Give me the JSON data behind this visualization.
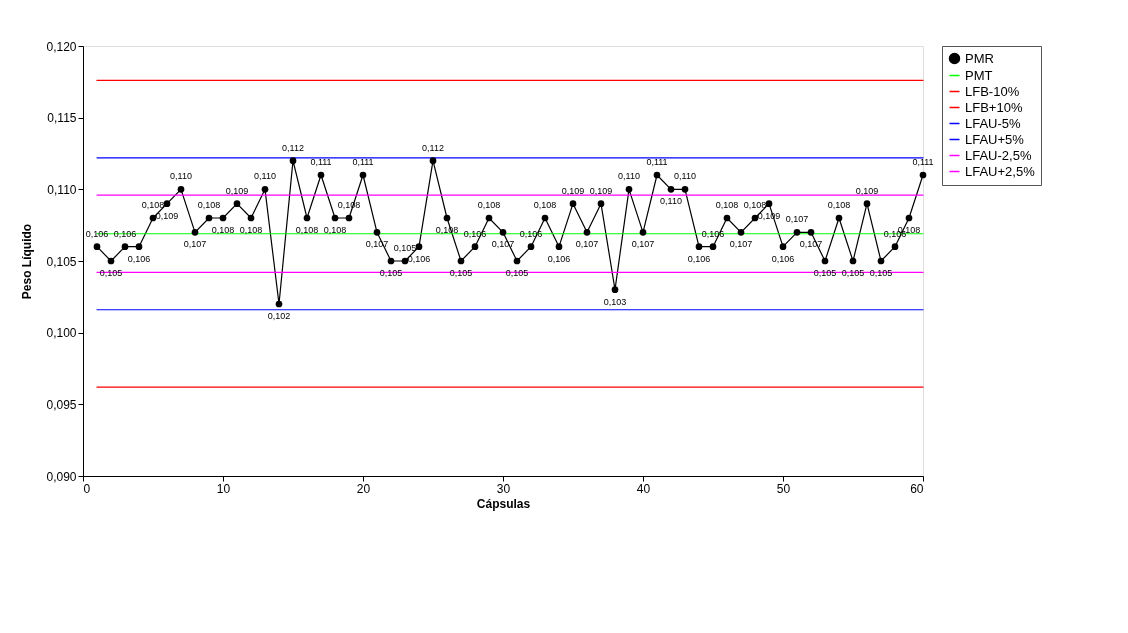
{
  "chart_data": {
    "type": "line",
    "xlabel": "Cápsulas",
    "ylabel": "Peso Líquido",
    "x": [
      1,
      2,
      3,
      4,
      5,
      6,
      7,
      8,
      9,
      10,
      11,
      12,
      13,
      14,
      15,
      16,
      17,
      18,
      19,
      20,
      21,
      22,
      23,
      24,
      25,
      26,
      27,
      28,
      29,
      30,
      31,
      32,
      33,
      34,
      35,
      36,
      37,
      38,
      39,
      40,
      41,
      42,
      43,
      44,
      45,
      46,
      47,
      48,
      49,
      50,
      51,
      52,
      53,
      54,
      55,
      56,
      57,
      58,
      59,
      60
    ],
    "series": [
      {
        "name": "PMR",
        "color": "#000000",
        "marker": "circle",
        "values": [
          0.106,
          0.105,
          0.106,
          0.106,
          0.108,
          0.109,
          0.11,
          0.107,
          0.108,
          0.108,
          0.109,
          0.108,
          0.11,
          0.102,
          0.112,
          0.108,
          0.111,
          0.108,
          0.108,
          0.111,
          0.107,
          0.105,
          0.105,
          0.106,
          0.112,
          0.108,
          0.105,
          0.106,
          0.108,
          0.107,
          0.105,
          0.106,
          0.108,
          0.106,
          0.109,
          0.107,
          0.109,
          0.103,
          0.11,
          0.107,
          0.111,
          0.11,
          0.11,
          0.106,
          0.106,
          0.108,
          0.107,
          0.108,
          0.109,
          0.106,
          0.107,
          0.107,
          0.105,
          0.108,
          0.105,
          0.109,
          0.105,
          0.106,
          0.108,
          0.111
        ],
        "value_labels": [
          "0,106",
          "0,105",
          "0,106",
          "0,106",
          "0,108",
          "0,109",
          "0,110",
          "0,107",
          "0,108",
          "0,108",
          "0,109",
          "0,108",
          "0,110",
          "0,102",
          "0,112",
          "0,108",
          "0,111",
          "0,108",
          "0,108",
          "0,111",
          "0,107",
          "0,105",
          "0,105",
          "0,106",
          "0,112",
          "0,108",
          "0,105",
          "0,106",
          "0,108",
          "0,107",
          "0,105",
          "0,106",
          "0,108",
          "0,106",
          "0,109",
          "0,107",
          "0,109",
          "0,103",
          "0,110",
          "0,107",
          "0,111",
          "0,110",
          "0,110",
          "0,106",
          "0,106",
          "0,108",
          "0,107",
          "0,108",
          "0,109",
          "0,106",
          "0,107",
          "0,107",
          "0,105",
          "0,108",
          "0,105",
          "0,109",
          "0,105",
          "0,106",
          "0,108",
          "0,111"
        ]
      },
      {
        "name": "PMT",
        "color": "#00ff00",
        "values": [
          0.1069,
          0.1069,
          0.1069,
          0.1069,
          0.1069,
          0.1069,
          0.1069,
          0.1069,
          0.1069,
          0.1069,
          0.1069,
          0.1069,
          0.1069,
          0.1069,
          0.1069,
          0.1069,
          0.1069,
          0.1069,
          0.1069,
          0.1069,
          0.1069,
          0.1069,
          0.1069,
          0.1069,
          0.1069,
          0.1069,
          0.1069,
          0.1069,
          0.1069,
          0.1069,
          0.1069,
          0.1069,
          0.1069,
          0.1069,
          0.1069,
          0.1069,
          0.1069,
          0.1069,
          0.1069,
          0.1069,
          0.1069,
          0.1069,
          0.1069,
          0.1069,
          0.1069,
          0.1069,
          0.1069,
          0.1069,
          0.1069,
          0.1069,
          0.1069,
          0.1069,
          0.1069,
          0.1069,
          0.1069,
          0.1069,
          0.1069,
          0.1069,
          0.1069,
          0.1069
        ]
      },
      {
        "name": "LFB-10%",
        "color": "#ff0000",
        "values": [
          0.0962,
          0.0962,
          0.0962,
          0.0962,
          0.0962,
          0.0962,
          0.0962,
          0.0962,
          0.0962,
          0.0962,
          0.0962,
          0.0962,
          0.0962,
          0.0962,
          0.0962,
          0.0962,
          0.0962,
          0.0962,
          0.0962,
          0.0962,
          0.0962,
          0.0962,
          0.0962,
          0.0962,
          0.0962,
          0.0962,
          0.0962,
          0.0962,
          0.0962,
          0.0962,
          0.0962,
          0.0962,
          0.0962,
          0.0962,
          0.0962,
          0.0962,
          0.0962,
          0.0962,
          0.0962,
          0.0962,
          0.0962,
          0.0962,
          0.0962,
          0.0962,
          0.0962,
          0.0962,
          0.0962,
          0.0962,
          0.0962,
          0.0962,
          0.0962,
          0.0962,
          0.0962,
          0.0962,
          0.0962,
          0.0962,
          0.0962,
          0.0962,
          0.0962,
          0.0962
        ]
      },
      {
        "name": "LFB+10%",
        "color": "#ff0000",
        "values": [
          0.1176,
          0.1176,
          0.1176,
          0.1176,
          0.1176,
          0.1176,
          0.1176,
          0.1176,
          0.1176,
          0.1176,
          0.1176,
          0.1176,
          0.1176,
          0.1176,
          0.1176,
          0.1176,
          0.1176,
          0.1176,
          0.1176,
          0.1176,
          0.1176,
          0.1176,
          0.1176,
          0.1176,
          0.1176,
          0.1176,
          0.1176,
          0.1176,
          0.1176,
          0.1176,
          0.1176,
          0.1176,
          0.1176,
          0.1176,
          0.1176,
          0.1176,
          0.1176,
          0.1176,
          0.1176,
          0.1176,
          0.1176,
          0.1176,
          0.1176,
          0.1176,
          0.1176,
          0.1176,
          0.1176,
          0.1176,
          0.1176,
          0.1176,
          0.1176,
          0.1176,
          0.1176,
          0.1176,
          0.1176,
          0.1176,
          0.1176,
          0.1176,
          0.1176,
          0.1176
        ]
      },
      {
        "name": "LFAU-5%",
        "color": "#0000ff",
        "values": [
          0.1016,
          0.1016,
          0.1016,
          0.1016,
          0.1016,
          0.1016,
          0.1016,
          0.1016,
          0.1016,
          0.1016,
          0.1016,
          0.1016,
          0.1016,
          0.1016,
          0.1016,
          0.1016,
          0.1016,
          0.1016,
          0.1016,
          0.1016,
          0.1016,
          0.1016,
          0.1016,
          0.1016,
          0.1016,
          0.1016,
          0.1016,
          0.1016,
          0.1016,
          0.1016,
          0.1016,
          0.1016,
          0.1016,
          0.1016,
          0.1016,
          0.1016,
          0.1016,
          0.1016,
          0.1016,
          0.1016,
          0.1016,
          0.1016,
          0.1016,
          0.1016,
          0.1016,
          0.1016,
          0.1016,
          0.1016,
          0.1016,
          0.1016,
          0.1016,
          0.1016,
          0.1016,
          0.1016,
          0.1016,
          0.1016,
          0.1016,
          0.1016,
          0.1016,
          0.1016
        ]
      },
      {
        "name": "LFAU+5%",
        "color": "#0000ff",
        "values": [
          0.1122,
          0.1122,
          0.1122,
          0.1122,
          0.1122,
          0.1122,
          0.1122,
          0.1122,
          0.1122,
          0.1122,
          0.1122,
          0.1122,
          0.1122,
          0.1122,
          0.1122,
          0.1122,
          0.1122,
          0.1122,
          0.1122,
          0.1122,
          0.1122,
          0.1122,
          0.1122,
          0.1122,
          0.1122,
          0.1122,
          0.1122,
          0.1122,
          0.1122,
          0.1122,
          0.1122,
          0.1122,
          0.1122,
          0.1122,
          0.1122,
          0.1122,
          0.1122,
          0.1122,
          0.1122,
          0.1122,
          0.1122,
          0.1122,
          0.1122,
          0.1122,
          0.1122,
          0.1122,
          0.1122,
          0.1122,
          0.1122,
          0.1122,
          0.1122,
          0.1122,
          0.1122,
          0.1122,
          0.1122,
          0.1122,
          0.1122,
          0.1122,
          0.1122,
          0.1122
        ]
      },
      {
        "name": "LFAU-2,5%",
        "color": "#ff00ff",
        "values": [
          0.1042,
          0.1042,
          0.1042,
          0.1042,
          0.1042,
          0.1042,
          0.1042,
          0.1042,
          0.1042,
          0.1042,
          0.1042,
          0.1042,
          0.1042,
          0.1042,
          0.1042,
          0.1042,
          0.1042,
          0.1042,
          0.1042,
          0.1042,
          0.1042,
          0.1042,
          0.1042,
          0.1042,
          0.1042,
          0.1042,
          0.1042,
          0.1042,
          0.1042,
          0.1042,
          0.1042,
          0.1042,
          0.1042,
          0.1042,
          0.1042,
          0.1042,
          0.1042,
          0.1042,
          0.1042,
          0.1042,
          0.1042,
          0.1042,
          0.1042,
          0.1042,
          0.1042,
          0.1042,
          0.1042,
          0.1042,
          0.1042,
          0.1042,
          0.1042,
          0.1042,
          0.1042,
          0.1042,
          0.1042,
          0.1042,
          0.1042,
          0.1042,
          0.1042,
          0.1042
        ]
      },
      {
        "name": "LFAU+2,5%",
        "color": "#ff00ff",
        "values": [
          0.1096,
          0.1096,
          0.1096,
          0.1096,
          0.1096,
          0.1096,
          0.1096,
          0.1096,
          0.1096,
          0.1096,
          0.1096,
          0.1096,
          0.1096,
          0.1096,
          0.1096,
          0.1096,
          0.1096,
          0.1096,
          0.1096,
          0.1096,
          0.1096,
          0.1096,
          0.1096,
          0.1096,
          0.1096,
          0.1096,
          0.1096,
          0.1096,
          0.1096,
          0.1096,
          0.1096,
          0.1096,
          0.1096,
          0.1096,
          0.1096,
          0.1096,
          0.1096,
          0.1096,
          0.1096,
          0.1096,
          0.1096,
          0.1096,
          0.1096,
          0.1096,
          0.1096,
          0.1096,
          0.1096,
          0.1096,
          0.1096,
          0.1096,
          0.1096,
          0.1096,
          0.1096,
          0.1096,
          0.1096,
          0.1096,
          0.1096,
          0.1096,
          0.1096,
          0.1096
        ]
      }
    ],
    "xlim": [
      0,
      60
    ],
    "xticks": [
      0,
      10,
      20,
      30,
      40,
      50,
      60
    ],
    "ylim": [
      0.09,
      0.12
    ],
    "yticks": [
      {
        "value": 0.09,
        "label": "0,090"
      },
      {
        "value": 0.095,
        "label": "0,095"
      },
      {
        "value": 0.1,
        "label": "0,100"
      },
      {
        "value": 0.105,
        "label": "0,105"
      },
      {
        "value": 0.11,
        "label": "0,110"
      },
      {
        "value": 0.115,
        "label": "0,115"
      },
      {
        "value": 0.12,
        "label": "0,120"
      }
    ],
    "grid": false,
    "legend": "right",
    "line_style": "solid"
  }
}
